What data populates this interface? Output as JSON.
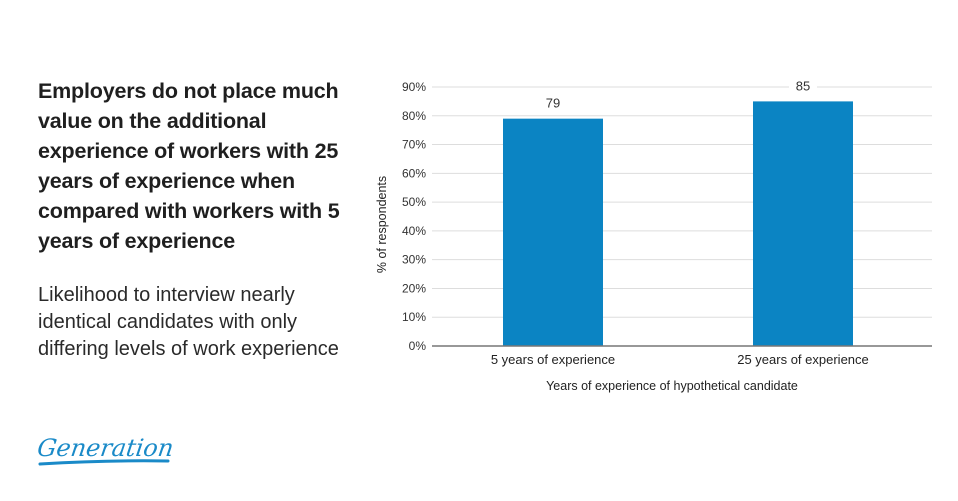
{
  "headline": "Employers do not place much value on the additional experience of workers with 25 years of experience when compared with workers with 5 years of experience",
  "subtitle": "Likelihood to interview nearly identical candidates with only differing levels of work experience",
  "logo": {
    "text": "Generation",
    "color": "#1a8ac8"
  },
  "colors": {
    "bar": "#0b84c3",
    "grid": "#dddddd",
    "axis": "#777777"
  },
  "chart_data": {
    "type": "bar",
    "title": "",
    "categories": [
      "5 years of experience",
      "25 years of experience"
    ],
    "values": [
      79,
      85
    ],
    "value_labels": [
      "79",
      "85"
    ],
    "xlabel": "Years of experience of hypothetical candidate",
    "ylabel": "% of respondents",
    "ylim": [
      0,
      90
    ],
    "yticks": [
      0,
      10,
      20,
      30,
      40,
      50,
      60,
      70,
      80,
      90
    ],
    "ytick_labels": [
      "0%",
      "10%",
      "20%",
      "30%",
      "40%",
      "50%",
      "60%",
      "70%",
      "80%",
      "90%"
    ],
    "grid": true,
    "legend": "none"
  }
}
